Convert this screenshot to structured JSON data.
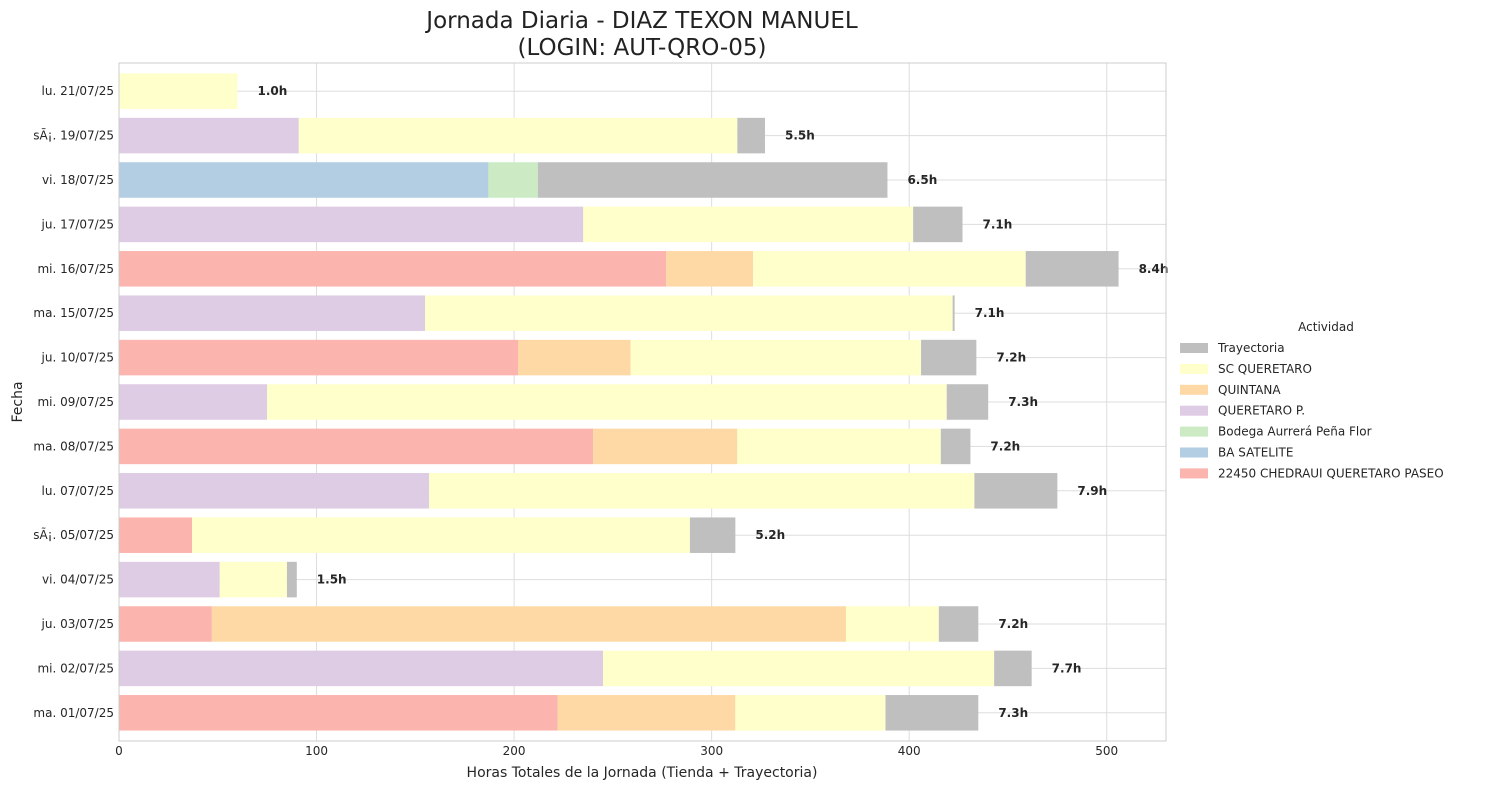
{
  "chart_data": {
    "type": "bar",
    "orientation": "horizontal",
    "stacked": true,
    "title_line1": "Jornada Diaria - DIAZ TEXON MANUEL",
    "title_line2": "(LOGIN: AUT-QRO-05)",
    "xlabel": "Horas Totales de la Jornada (Tienda + Trayectoria)",
    "ylabel": "Fecha",
    "xlim": [
      0,
      530
    ],
    "xticks": [
      0,
      100,
      200,
      300,
      400,
      500
    ],
    "grid": true,
    "legend_title": "Actividad",
    "legend_placement": "right",
    "categories": [
      "lu. 21/07/25",
      "sÃ¡. 19/07/25",
      "vi. 18/07/25",
      "ju. 17/07/25",
      "mi. 16/07/25",
      "ma. 15/07/25",
      "ju. 10/07/25",
      "mi. 09/07/25",
      "ma. 08/07/25",
      "lu. 07/07/25",
      "sÃ¡. 05/07/25",
      "vi. 04/07/25",
      "ju. 03/07/25",
      "mi. 02/07/25",
      "ma. 01/07/25"
    ],
    "totals": [
      "1.0h",
      "5.5h",
      "6.5h",
      "7.1h",
      "8.4h",
      "7.1h",
      "7.2h",
      "7.3h",
      "7.2h",
      "7.9h",
      "5.2h",
      "1.5h",
      "7.2h",
      "7.7h",
      "7.3h"
    ],
    "series": [
      {
        "name": "22450 CHEDRAUI QUERETARO PASEO",
        "color": "#fbb4ae",
        "values": [
          0,
          0,
          0,
          0,
          277,
          0,
          202,
          0,
          240,
          0,
          37,
          0,
          47,
          0,
          222
        ]
      },
      {
        "name": "BA SATELITE",
        "color": "#b3cde3",
        "values": [
          0,
          0,
          187,
          0,
          0,
          0,
          0,
          0,
          0,
          0,
          0,
          0,
          0,
          0,
          0
        ]
      },
      {
        "name": "Bodega Aurrerá Peña Flor",
        "color": "#ccebc5",
        "values": [
          0,
          0,
          25,
          0,
          0,
          0,
          0,
          0,
          0,
          0,
          0,
          0,
          0,
          0,
          0
        ]
      },
      {
        "name": "QUERETARO P.",
        "color": "#decbe4",
        "values": [
          0,
          91,
          0,
          235,
          0,
          155,
          0,
          75,
          0,
          157,
          0,
          51,
          0,
          245,
          0
        ]
      },
      {
        "name": "QUINTANA",
        "color": "#fed9a6",
        "values": [
          0,
          0,
          0,
          0,
          44,
          0,
          57,
          0,
          73,
          0,
          0,
          0,
          321,
          0,
          90
        ]
      },
      {
        "name": "SC QUERETARO",
        "color": "#ffffcc",
        "values": [
          60,
          222,
          0,
          167,
          138,
          267,
          147,
          344,
          103,
          276,
          252,
          34,
          47,
          198,
          76
        ]
      },
      {
        "name": "Trayectoria",
        "color": "#bfbfbf",
        "values": [
          0,
          14,
          177,
          25,
          47,
          1,
          28,
          21,
          15,
          42,
          23,
          5,
          20,
          19,
          47
        ]
      }
    ],
    "legend_order": [
      "Trayectoria",
      "SC QUERETARO",
      "QUINTANA",
      "QUERETARO P.",
      "Bodega Aurrerá Peña Flor",
      "BA SATELITE",
      "22450 CHEDRAUI QUERETARO PASEO"
    ]
  }
}
